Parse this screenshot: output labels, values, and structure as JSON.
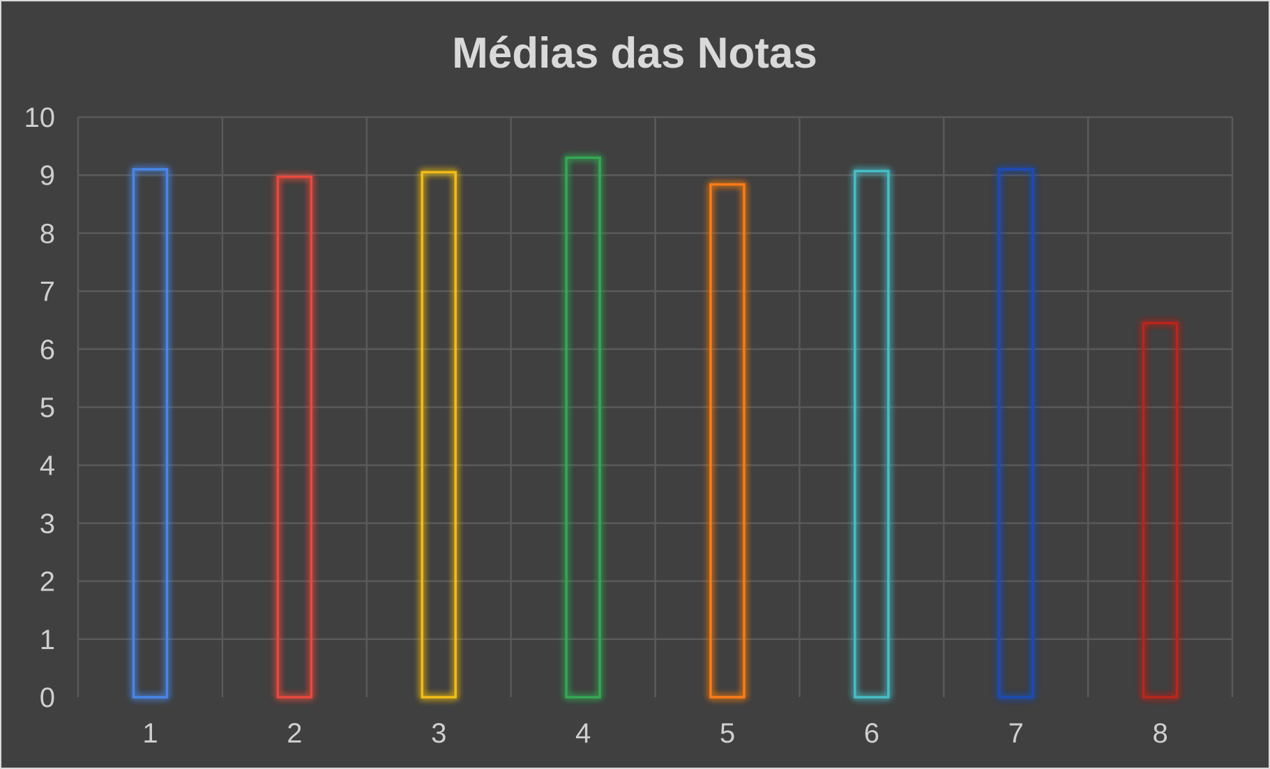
{
  "chart_data": {
    "type": "bar",
    "title": "Médias das Notas",
    "xlabel": "",
    "ylabel": "",
    "categories": [
      "1",
      "2",
      "3",
      "4",
      "5",
      "6",
      "7",
      "8"
    ],
    "values": [
      9.1,
      8.97,
      9.05,
      9.3,
      8.84,
      9.07,
      9.1,
      6.45
    ],
    "colors": [
      "#4a86e8",
      "#e8493c",
      "#f2bd18",
      "#34a853",
      "#fa7b17",
      "#46bdc6",
      "#1f4bb5",
      "#b8281e"
    ],
    "ylim": [
      0,
      10
    ],
    "yticks": [
      "0",
      "1",
      "2",
      "3",
      "4",
      "5",
      "6",
      "7",
      "8",
      "9",
      "10"
    ],
    "grid": true,
    "legend": "none"
  }
}
